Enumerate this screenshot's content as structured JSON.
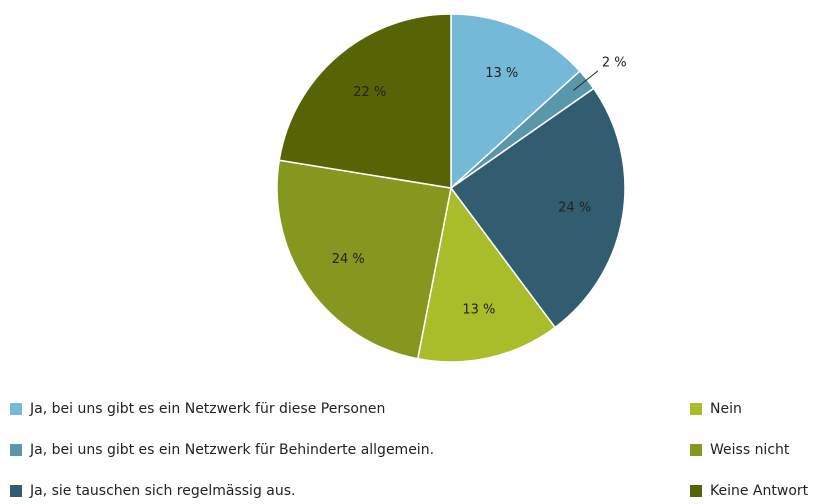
{
  "chart_data": {
    "type": "pie",
    "categories": [
      "Ja, bei uns gibt es ein Netzwerk für diese Personen",
      "Ja, bei uns gibt es ein Netzwerk für Behinderte allgemein.",
      "Ja, sie tauschen sich regelmässig aus.",
      "Nein",
      "Weiss nicht",
      "Keine Antwort"
    ],
    "values": [
      13,
      2,
      24,
      13,
      24,
      22
    ],
    "value_labels": [
      "13 %",
      "2 %",
      "24 %",
      "13 %",
      "24 %",
      "22 %"
    ],
    "colors": [
      "#74b9d8",
      "#5b97aa",
      "#325d70",
      "#a9bd2a",
      "#85971e",
      "#566405"
    ]
  }
}
